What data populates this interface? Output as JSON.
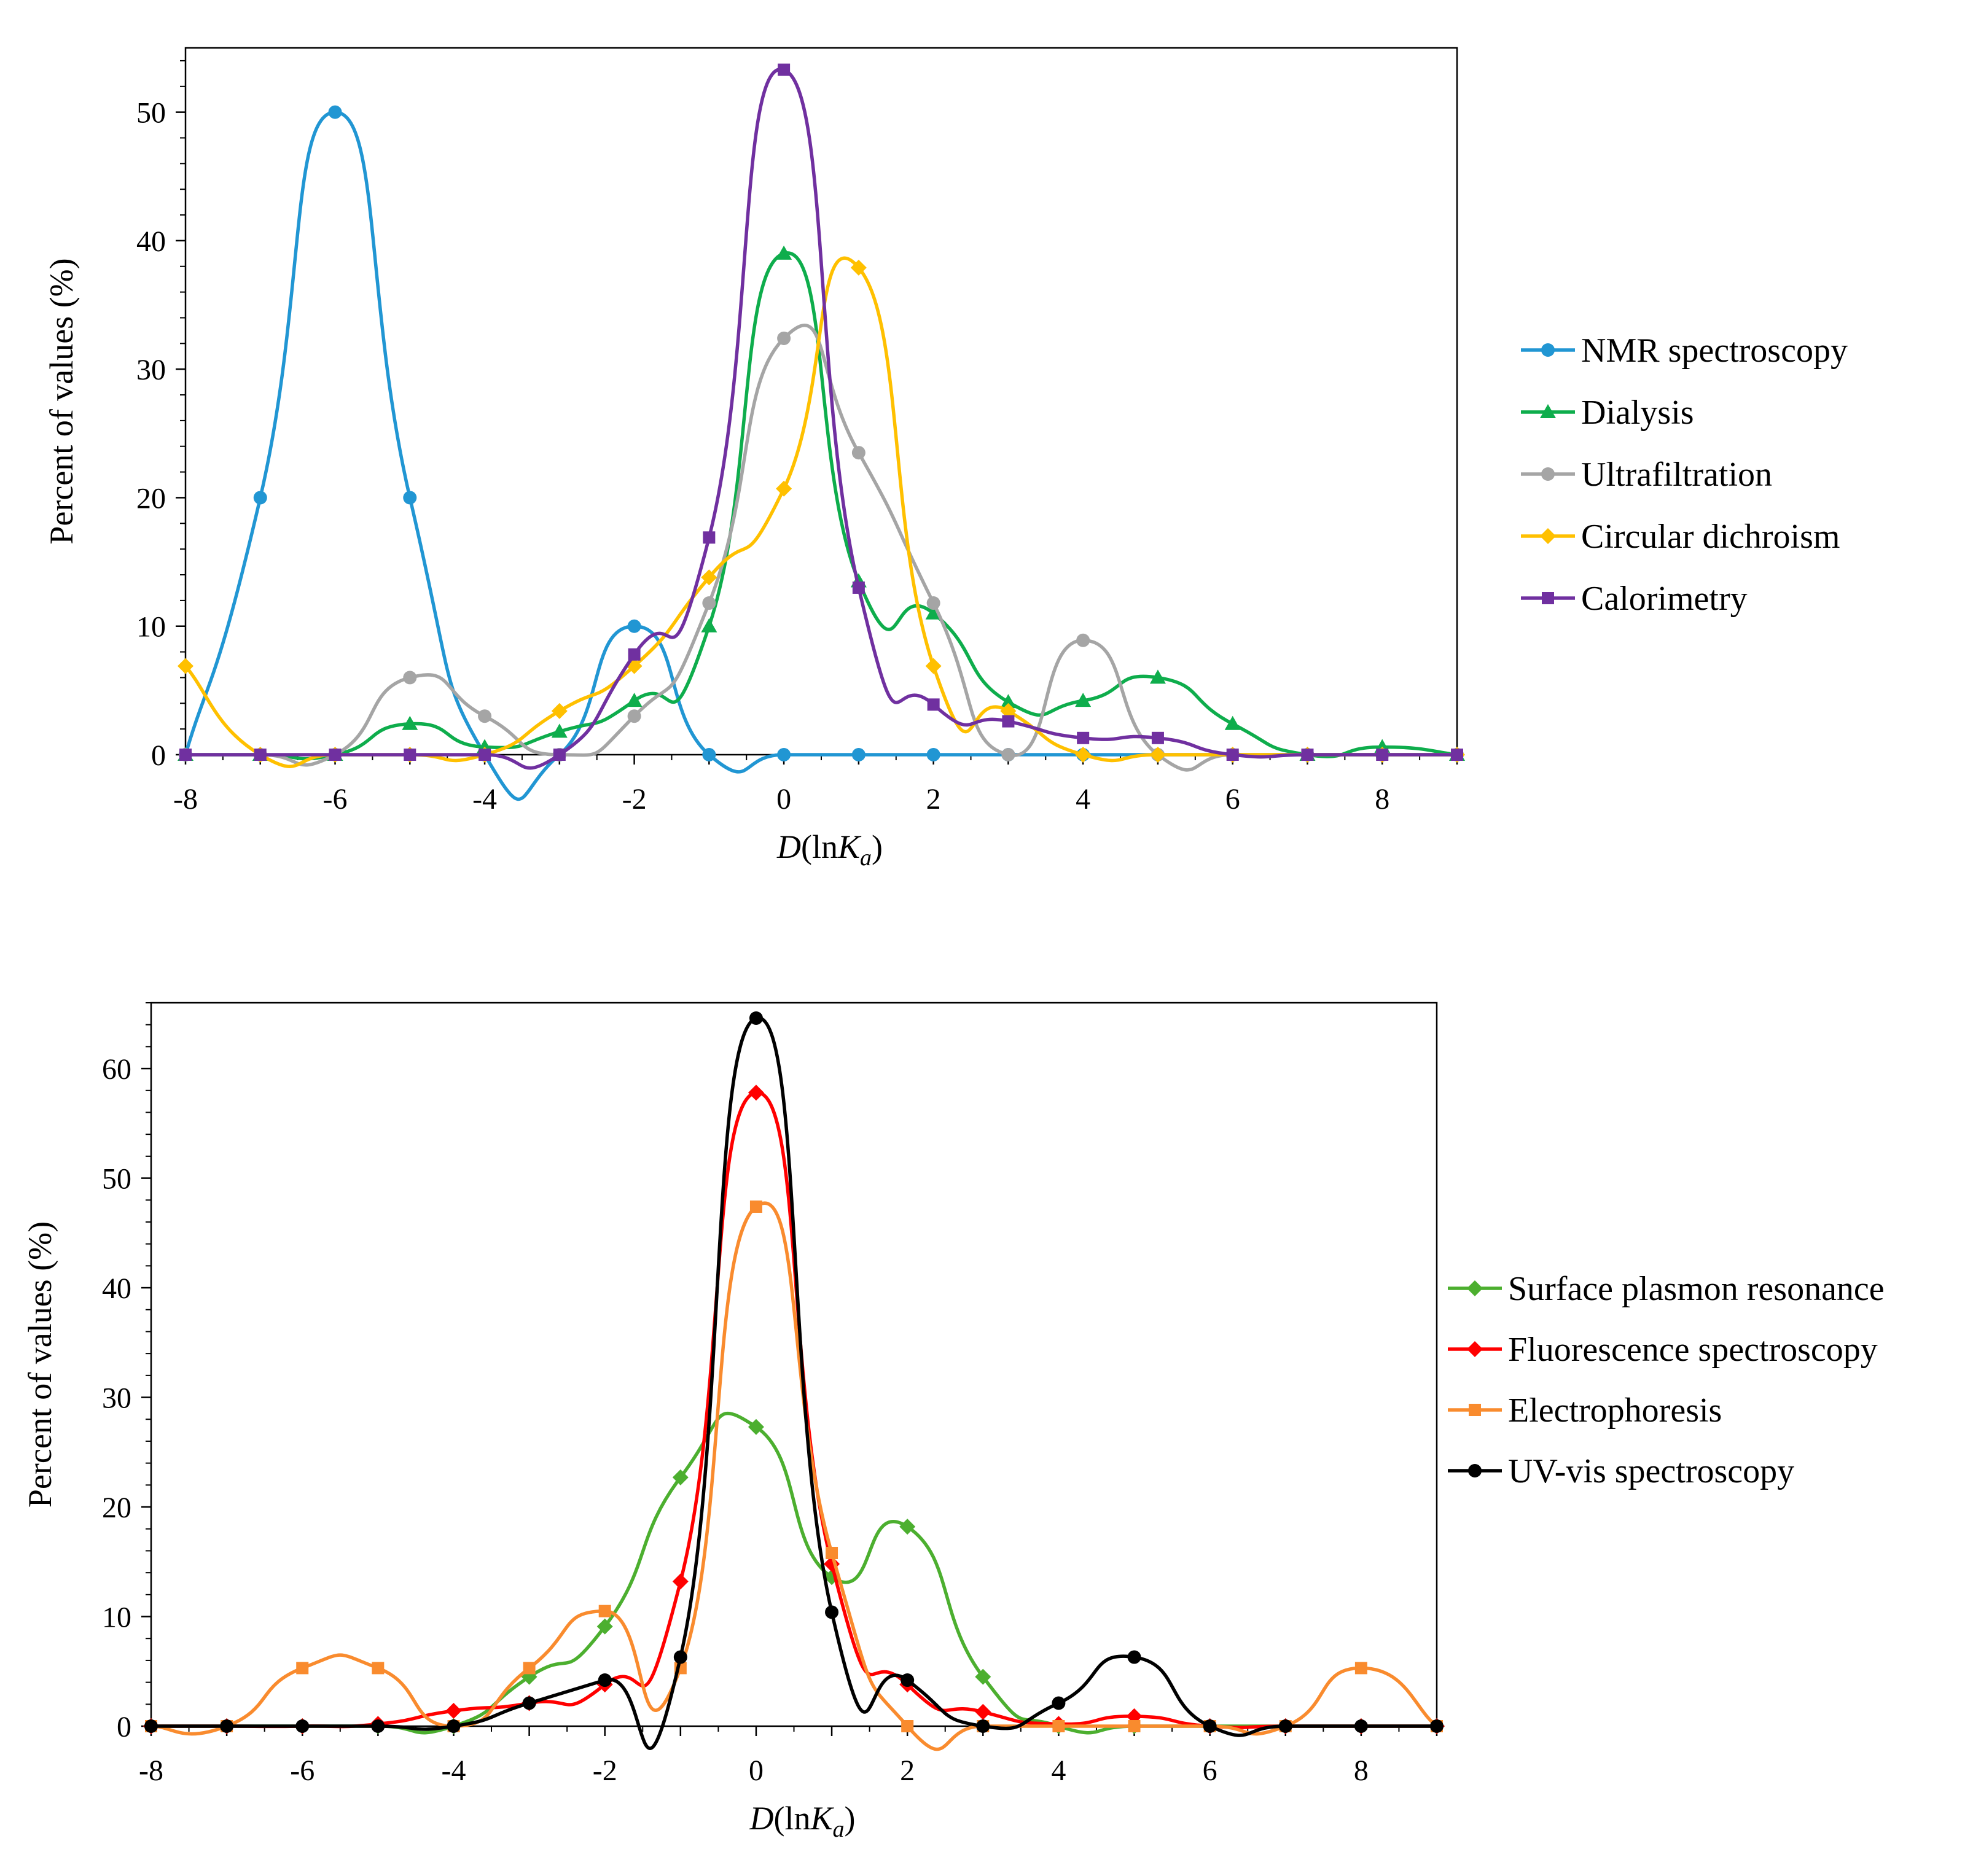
{
  "chart_data": [
    {
      "id": "top",
      "type": "line",
      "smooth": true,
      "xlabel": {
        "italic": "D",
        "pre": "(ln",
        "italic2": "K",
        "sub": "a",
        "post": ")"
      },
      "ylabel": "Percent of values (%)",
      "xlim": [
        -8,
        9
      ],
      "ylim": [
        0,
        55
      ],
      "xticks": [
        -8,
        -6,
        -4,
        -2,
        0,
        2,
        4,
        6,
        8
      ],
      "yticks": [
        0,
        10,
        20,
        30,
        40,
        50
      ],
      "ymajor": 10,
      "ymin_step": 2,
      "legend_position": "right",
      "series": [
        {
          "name": "NMR spectroscopy",
          "color": "#2196D3",
          "marker": "circle",
          "x": [
            -8,
            -7,
            -6,
            -5,
            -4,
            -3,
            -2,
            -1,
            0,
            1,
            2,
            3,
            4,
            5,
            6,
            7,
            8,
            9
          ],
          "y": [
            0,
            20,
            50,
            20,
            0,
            0,
            10,
            0,
            0,
            0,
            0,
            0,
            0,
            0,
            0,
            0,
            0,
            0
          ]
        },
        {
          "name": "Dialysis",
          "color": "#0EAD4C",
          "marker": "triangle",
          "x": [
            -8,
            -7,
            -6,
            -5,
            -4,
            -3,
            -2,
            -1,
            0,
            1,
            2,
            3,
            4,
            5,
            6,
            7,
            8,
            9
          ],
          "y": [
            0,
            0,
            0,
            2.4,
            0.6,
            1.8,
            4.2,
            10,
            39,
            13.5,
            11,
            4.1,
            4.2,
            6,
            2.4,
            0,
            0.6,
            0
          ]
        },
        {
          "name": "Ultrafiltration",
          "color": "#A5A5A5",
          "marker": "circle",
          "x": [
            -8,
            -7,
            -6,
            -5,
            -4,
            -3,
            -2,
            -1,
            0,
            1,
            2,
            3,
            4,
            5,
            6,
            7,
            8,
            9
          ],
          "y": [
            0,
            0,
            0,
            6,
            3,
            0,
            3,
            11.8,
            32.4,
            23.5,
            11.8,
            0,
            8.9,
            0,
            0,
            0,
            0,
            0
          ]
        },
        {
          "name": "Circular dichroism",
          "color": "#FFC000",
          "marker": "diamond",
          "x": [
            -8,
            -7,
            -6,
            -5,
            -4,
            -3,
            -2,
            -1,
            0,
            1,
            2,
            3,
            4,
            5,
            6,
            7,
            8,
            9
          ],
          "y": [
            6.9,
            0,
            0,
            0,
            0,
            3.4,
            6.9,
            13.8,
            20.7,
            37.9,
            6.9,
            3.4,
            0,
            0,
            0,
            0,
            0,
            0
          ]
        },
        {
          "name": "Calorimetry",
          "color": "#7030A0",
          "marker": "square",
          "x": [
            -8,
            -7,
            -6,
            -5,
            -4,
            -3,
            -2,
            -1,
            0,
            1,
            2,
            3,
            4,
            5,
            6,
            7,
            8,
            9
          ],
          "y": [
            0,
            0,
            0,
            0,
            0,
            0,
            7.8,
            16.9,
            53.3,
            13,
            3.9,
            2.6,
            1.3,
            1.3,
            0,
            0,
            0,
            0
          ]
        }
      ]
    },
    {
      "id": "bottom",
      "type": "line",
      "smooth": true,
      "xlabel": {
        "italic": "D",
        "pre": "(ln",
        "italic2": "K",
        "sub": "a",
        "post": ")"
      },
      "ylabel": "Percent of values (%)",
      "xlim": [
        -8,
        9
      ],
      "ylim": [
        0,
        66
      ],
      "xticks": [
        -8,
        -6,
        -4,
        -2,
        0,
        2,
        4,
        6,
        8
      ],
      "yticks": [
        0,
        10,
        20,
        30,
        40,
        50,
        60
      ],
      "ymajor": 10,
      "ymin_step": 2,
      "legend_position": "right",
      "series": [
        {
          "name": "Surface plasmon resonance",
          "color": "#4CAF2F",
          "marker": "diamond",
          "x": [
            -8,
            -7,
            -6,
            -5,
            -4,
            -3,
            -2,
            -1,
            0,
            1,
            2,
            3,
            4,
            5,
            6,
            7,
            8,
            9
          ],
          "y": [
            0,
            0,
            0,
            0,
            0,
            4.5,
            9.1,
            22.7,
            27.3,
            13.6,
            18.2,
            4.5,
            0,
            0,
            0,
            0,
            0,
            0
          ]
        },
        {
          "name": "Fluorescence spectroscopy",
          "color": "#FF0000",
          "marker": "diamond",
          "x": [
            -8,
            -7,
            -6,
            -5,
            -4,
            -3,
            -2,
            -1,
            0,
            1,
            2,
            3,
            4,
            5,
            6,
            7,
            8,
            9
          ],
          "y": [
            0,
            0,
            0,
            0.2,
            1.4,
            2.1,
            3.8,
            13.2,
            57.8,
            14.8,
            3.8,
            1.3,
            0.2,
            0.9,
            0,
            0,
            0,
            0
          ]
        },
        {
          "name": "Electrophoresis",
          "color": "#F98B2E",
          "marker": "square",
          "x": [
            -8,
            -7,
            -6,
            -5,
            -4,
            -3,
            -2,
            -1,
            0,
            1,
            2,
            3,
            4,
            5,
            6,
            7,
            8,
            9
          ],
          "y": [
            0,
            0,
            5.3,
            5.3,
            0,
            5.3,
            10.5,
            5.3,
            47.4,
            15.8,
            0,
            0,
            0,
            0,
            0,
            0,
            5.3,
            0
          ]
        },
        {
          "name": "UV-vis spectroscopy",
          "color": "#000000",
          "marker": "circle",
          "x": [
            -8,
            -7,
            -6,
            -5,
            -4,
            -3,
            -2,
            -1,
            0,
            1,
            2,
            3,
            4,
            5,
            6,
            7,
            8,
            9
          ],
          "y": [
            0,
            0,
            0,
            0,
            0,
            2.1,
            4.2,
            6.3,
            64.6,
            10.4,
            4.2,
            0,
            2.1,
            6.3,
            0,
            0,
            0,
            0
          ]
        }
      ]
    }
  ]
}
